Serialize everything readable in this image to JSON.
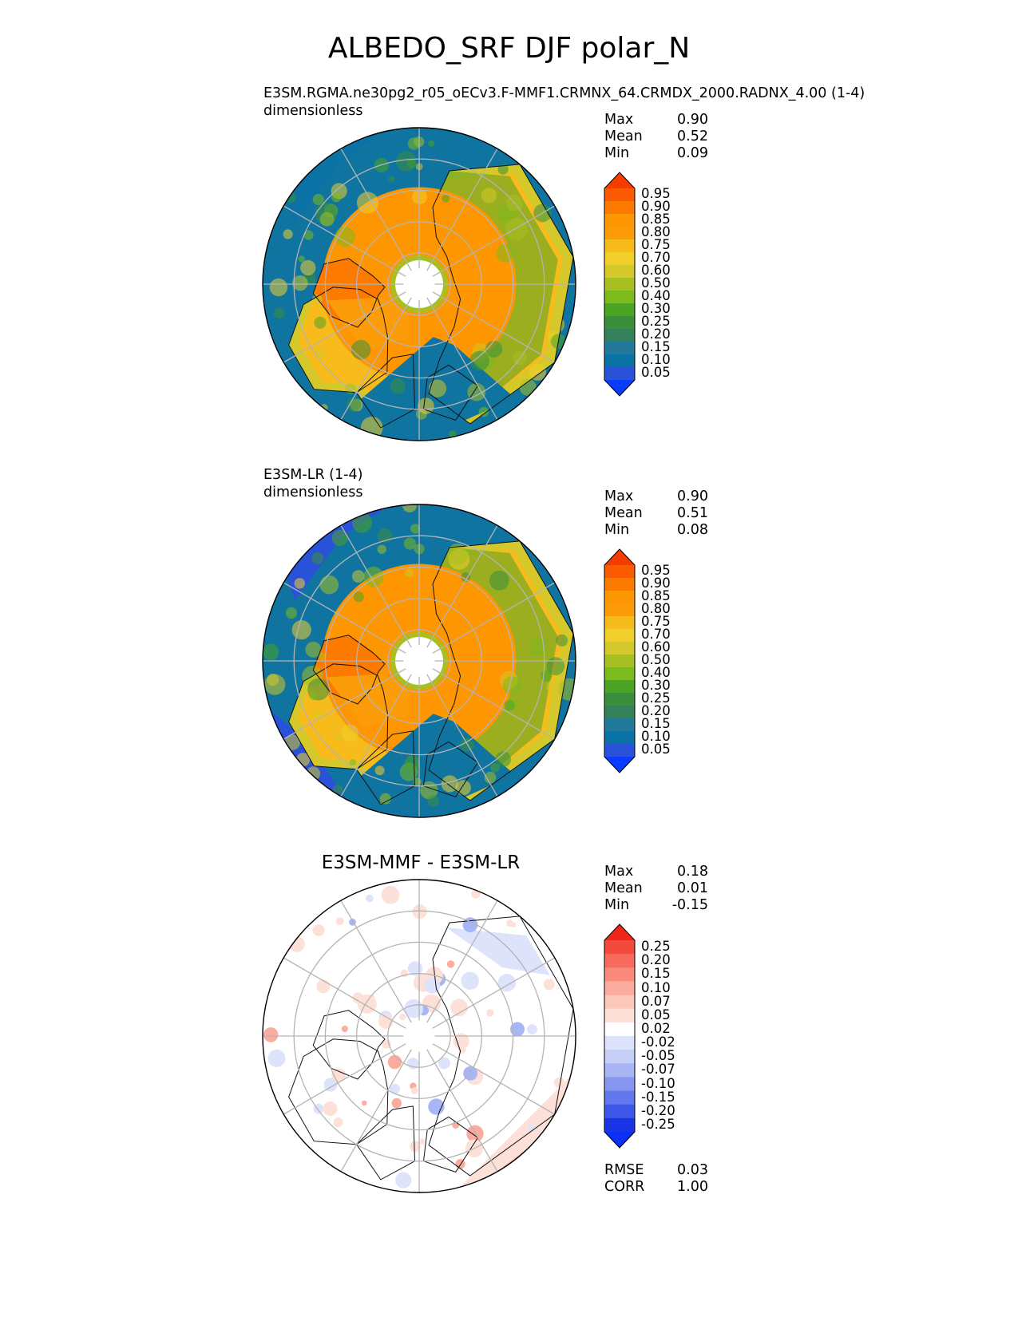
{
  "title": "ALBEDO_SRF DJF polar_N",
  "chart_data": [
    {
      "type": "heatmap",
      "projection": "north-polar-stereographic",
      "title": "E3SM.RGMA.ne30pg2_r05_oECv3.F-MMF1.CRMNX_64.CRMDX_2000.RADNX_4.00 (1-4)",
      "units": "dimensionless",
      "stats": [
        {
          "label": "Max",
          "value": "0.90"
        },
        {
          "label": "Mean",
          "value": "0.52"
        },
        {
          "label": "Min",
          "value": "0.09"
        }
      ],
      "colorbar_levels": [
        "0.95",
        "0.90",
        "0.85",
        "0.80",
        "0.75",
        "0.70",
        "0.60",
        "0.50",
        "0.40",
        "0.30",
        "0.25",
        "0.20",
        "0.15",
        "0.10",
        "0.05"
      ],
      "colorbar_colors": [
        "#f53c00",
        "#fb5a00",
        "#fc7a00",
        "#fd9600",
        "#fb9c08",
        "#f8bb1c",
        "#f1d02c",
        "#d4c82a",
        "#a7bf21",
        "#7dba1d",
        "#4da422",
        "#3a8f3c",
        "#33825c",
        "#217898",
        "#0b72a5",
        "#2a52d8",
        "#0a3cff"
      ],
      "colorbar_extend": "both"
    },
    {
      "type": "heatmap",
      "projection": "north-polar-stereographic",
      "title": "E3SM-LR (1-4)",
      "units": "dimensionless",
      "stats": [
        {
          "label": "Max",
          "value": "0.90"
        },
        {
          "label": "Mean",
          "value": "0.51"
        },
        {
          "label": "Min",
          "value": "0.08"
        }
      ],
      "colorbar_levels": [
        "0.95",
        "0.90",
        "0.85",
        "0.80",
        "0.75",
        "0.70",
        "0.60",
        "0.50",
        "0.40",
        "0.30",
        "0.25",
        "0.20",
        "0.15",
        "0.10",
        "0.05"
      ],
      "colorbar_colors": [
        "#f53c00",
        "#fb5a00",
        "#fc7a00",
        "#fd9600",
        "#fb9c08",
        "#f8bb1c",
        "#f1d02c",
        "#d4c82a",
        "#a7bf21",
        "#7dba1d",
        "#4da422",
        "#3a8f3c",
        "#33825c",
        "#217898",
        "#0b72a5",
        "#2a52d8",
        "#0a3cff"
      ],
      "colorbar_extend": "both"
    },
    {
      "type": "heatmap",
      "projection": "north-polar-stereographic",
      "title": "E3SM-MMF - E3SM-LR",
      "units": "",
      "stats": [
        {
          "label": "Max",
          "value": "0.18"
        },
        {
          "label": "Mean",
          "value": "0.01"
        },
        {
          "label": "Min",
          "value": "-0.15"
        }
      ],
      "colorbar_levels": [
        "0.25",
        "0.20",
        "0.15",
        "0.10",
        "0.07",
        "0.05",
        "0.02",
        "-0.02",
        "-0.05",
        "-0.07",
        "-0.10",
        "-0.15",
        "-0.20",
        "-0.25"
      ],
      "colorbar_colors": [
        "#f2251a",
        "#f44a3c",
        "#f76a5c",
        "#f98a7c",
        "#fbac9e",
        "#fcc8bc",
        "#fde0d8",
        "#ffffff",
        "#dde3fb",
        "#c6cff8",
        "#a9b6f5",
        "#8797f1",
        "#6478ed",
        "#4058e9",
        "#1a35e6",
        "#0a2ff5"
      ],
      "colorbar_extend": "both",
      "footer_stats": [
        {
          "label": "RMSE",
          "value": "0.03"
        },
        {
          "label": "CORR",
          "value": "1.00"
        }
      ]
    }
  ]
}
